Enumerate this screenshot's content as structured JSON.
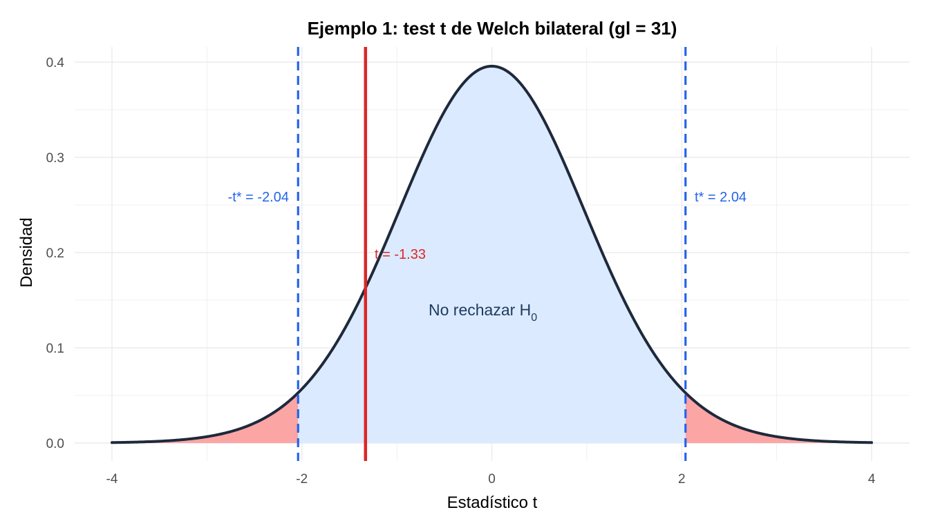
{
  "chart_data": {
    "type": "area",
    "title": "Ejemplo 1: test t de Welch bilateral (gl = 31)",
    "xlabel": "Estadístico t",
    "ylabel": "Densidad",
    "xlim": [
      -4,
      4
    ],
    "ylim": [
      0,
      0.4
    ],
    "x_ticks": [
      -4,
      -2,
      0,
      2,
      4
    ],
    "x_tick_labels": [
      "-4",
      "-2",
      "0",
      "2",
      "4"
    ],
    "y_ticks": [
      0.0,
      0.1,
      0.2,
      0.3,
      0.4
    ],
    "y_tick_labels": [
      "0.0",
      "0.1",
      "0.2",
      "0.3",
      "0.4"
    ],
    "grid": true,
    "distribution": {
      "name": "t",
      "df": 31
    },
    "t_critical": 2.04,
    "t_observed": -1.33,
    "annotations": {
      "t_critical_neg": "-t* = -2.04",
      "t_critical_pos": "t* = 2.04",
      "t_observed": "t = -1.33",
      "acceptance_text": "No rechazar H",
      "acceptance_subscript": "0"
    },
    "colors": {
      "curve": "#1e293b",
      "acceptance_fill": "#dbeafe",
      "rejection_fill": "#fca5a5",
      "critical_line": "#2563eb",
      "observed_line": "#dc2626",
      "acceptance_text": "#1e3a5f",
      "grid": "#ebebeb"
    }
  }
}
